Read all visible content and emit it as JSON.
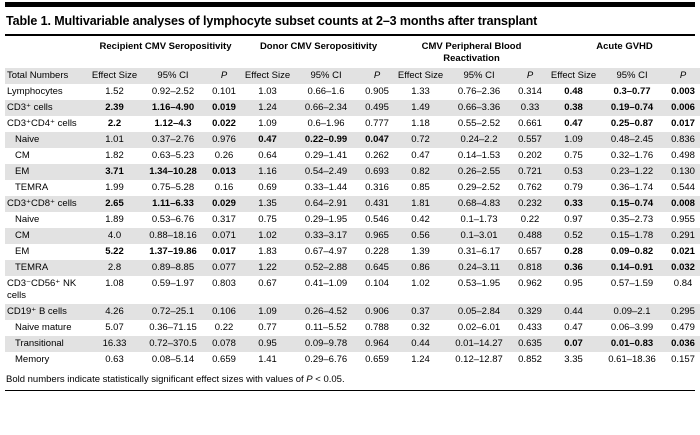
{
  "title": "Table 1. Multivariable analyses of lymphocyte subset counts at 2–3 months after transplant",
  "colors": {
    "stripe": "#e2e2e2",
    "rule": "#000000",
    "text": "#000000"
  },
  "header": {
    "row_label": "Total Numbers",
    "groups": [
      "Recipient CMV Seropositivity",
      "Donor CMV Seropositivity",
      "CMV Peripheral Blood Reactivation",
      "Acute GVHD"
    ],
    "subcols": [
      "Effect Size",
      "95% CI",
      "P"
    ]
  },
  "rows": [
    {
      "label": "Lymphocytes",
      "indent": false,
      "bold_groups": [
        3
      ],
      "cells": [
        "1.52",
        "0.92–2.52",
        "0.101",
        "1.03",
        "0.66–1.6",
        "0.905",
        "1.33",
        "0.76–2.36",
        "0.314",
        "0.48",
        "0.3–0.77",
        "0.003"
      ]
    },
    {
      "label": "CD3⁺ cells",
      "indent": false,
      "bold_groups": [
        0,
        3
      ],
      "cells": [
        "2.39",
        "1.16–4.90",
        "0.019",
        "1.24",
        "0.66–2.34",
        "0.495",
        "1.49",
        "0.66–3.36",
        "0.33",
        "0.38",
        "0.19–0.74",
        "0.006"
      ]
    },
    {
      "label": "CD3⁺CD4⁺ cells",
      "indent": false,
      "bold_groups": [
        0,
        3
      ],
      "cells": [
        "2.2",
        "1.12–4.3",
        "0.022",
        "1.09",
        "0.6–1.96",
        "0.777",
        "1.18",
        "0.55–2.52",
        "0.661",
        "0.47",
        "0.25–0.87",
        "0.017"
      ]
    },
    {
      "label": "Naive",
      "indent": true,
      "bold_groups": [
        1
      ],
      "cells": [
        "1.01",
        "0.37–2.76",
        "0.976",
        "0.47",
        "0.22–0.99",
        "0.047",
        "0.72",
        "0.24–2.2",
        "0.557",
        "1.09",
        "0.48–2.45",
        "0.836"
      ]
    },
    {
      "label": "CM",
      "indent": true,
      "bold_groups": [],
      "cells": [
        "1.82",
        "0.63–5.23",
        "0.26",
        "0.64",
        "0.29–1.41",
        "0.262",
        "0.47",
        "0.14–1.53",
        "0.202",
        "0.75",
        "0.32–1.76",
        "0.498"
      ]
    },
    {
      "label": "EM",
      "indent": true,
      "bold_groups": [
        0
      ],
      "cells": [
        "3.71",
        "1.34–10.28",
        "0.013",
        "1.16",
        "0.54–2.49",
        "0.693",
        "0.82",
        "0.26–2.55",
        "0.721",
        "0.53",
        "0.23–1.22",
        "0.130"
      ]
    },
    {
      "label": "TEMRA",
      "indent": true,
      "bold_groups": [],
      "cells": [
        "1.99",
        "0.75–5.28",
        "0.16",
        "0.69",
        "0.33–1.44",
        "0.316",
        "0.85",
        "0.29–2.52",
        "0.762",
        "0.79",
        "0.36–1.74",
        "0.544"
      ]
    },
    {
      "label": "CD3⁺CD8⁺ cells",
      "indent": false,
      "bold_groups": [
        0,
        3
      ],
      "cells": [
        "2.65",
        "1.11–6.33",
        "0.029",
        "1.35",
        "0.64–2.91",
        "0.431",
        "1.81",
        "0.68–4.83",
        "0.232",
        "0.33",
        "0.15–0.74",
        "0.008"
      ]
    },
    {
      "label": "Naive",
      "indent": true,
      "bold_groups": [],
      "cells": [
        "1.89",
        "0.53–6.76",
        "0.317",
        "0.75",
        "0.29–1.95",
        "0.546",
        "0.42",
        "0.1–1.73",
        "0.22",
        "0.97",
        "0.35–2.73",
        "0.955"
      ]
    },
    {
      "label": "CM",
      "indent": true,
      "bold_groups": [],
      "cells": [
        "4.0",
        "0.88–18.16",
        "0.071",
        "1.02",
        "0.33–3.17",
        "0.965",
        "0.56",
        "0.1–3.01",
        "0.488",
        "0.52",
        "0.15–1.78",
        "0.291"
      ]
    },
    {
      "label": "EM",
      "indent": true,
      "bold_groups": [
        0,
        3
      ],
      "cells": [
        "5.22",
        "1.37–19.86",
        "0.017",
        "1.83",
        "0.67–4.97",
        "0.228",
        "1.39",
        "0.31–6.17",
        "0.657",
        "0.28",
        "0.09–0.82",
        "0.021"
      ]
    },
    {
      "label": "TEMRA",
      "indent": true,
      "bold_groups": [
        3
      ],
      "cells": [
        "2.8",
        "0.89–8.85",
        "0.077",
        "1.22",
        "0.52–2.88",
        "0.645",
        "0.86",
        "0.24–3.11",
        "0.818",
        "0.36",
        "0.14–0.91",
        "0.032"
      ]
    },
    {
      "label": "CD3⁻CD56⁺ NK cells",
      "indent": false,
      "bold_groups": [],
      "cells": [
        "1.08",
        "0.59–1.97",
        "0.803",
        "0.67",
        "0.41–1.09",
        "0.104",
        "1.02",
        "0.53–1.95",
        "0.962",
        "0.95",
        "0.57–1.59",
        "0.84"
      ]
    },
    {
      "label": "CD19⁺ B cells",
      "indent": false,
      "bold_groups": [],
      "cells": [
        "4.26",
        "0.72–25.1",
        "0.106",
        "1.09",
        "0.26–4.52",
        "0.906",
        "0.37",
        "0.05–2.84",
        "0.329",
        "0.44",
        "0.09–2.1",
        "0.295"
      ]
    },
    {
      "label": "Naive mature",
      "indent": true,
      "bold_groups": [],
      "cells": [
        "5.07",
        "0.36–71.15",
        "0.22",
        "0.77",
        "0.11–5.52",
        "0.788",
        "0.32",
        "0.02–6.01",
        "0.433",
        "0.47",
        "0.06–3.99",
        "0.479"
      ]
    },
    {
      "label": "Transitional",
      "indent": true,
      "bold_groups": [
        3
      ],
      "cells": [
        "16.33",
        "0.72–370.5",
        "0.078",
        "0.95",
        "0.09–9.78",
        "0.964",
        "0.44",
        "0.01–14.27",
        "0.635",
        "0.07",
        "0.01–0.83",
        "0.036"
      ]
    },
    {
      "label": "Memory",
      "indent": true,
      "bold_groups": [],
      "cells": [
        "0.63",
        "0.08–5.14",
        "0.659",
        "1.41",
        "0.29–6.76",
        "0.659",
        "1.24",
        "0.12–12.87",
        "0.852",
        "3.35",
        "0.61–18.36",
        "0.157"
      ]
    }
  ],
  "footnote": {
    "pre": "Bold numbers indicate statistically significant effect sizes with values of ",
    "p": "P",
    "post": " < 0.05."
  }
}
